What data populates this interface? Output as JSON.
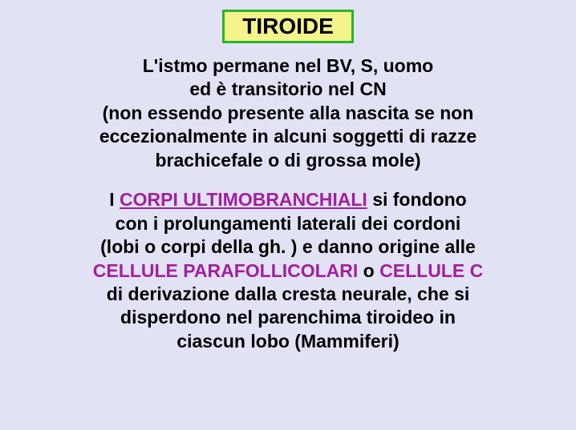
{
  "title": {
    "text": "TIROIDE",
    "border_color": "#29b329",
    "bg_color": "#f4f48c",
    "text_color": "#000000"
  },
  "para1": {
    "line1": "L'istmo permane nel BV, S, uomo",
    "line2": "ed è transitorio nel CN",
    "line3": "(non essendo presente alla nascita se non",
    "line4": "eccezionalmente in alcuni soggetti di razze",
    "line5": "brachicefale o di grossa mole)"
  },
  "para2": {
    "pre": "I ",
    "term1": "CORPI ULTIMOBRANCHIALI",
    "mid1": " si fondono",
    "line2": "con i prolungamenti laterali dei cordoni",
    "line3": "(lobi o corpi della gh. ) e danno origine alle",
    "term2a": "CELLULE PARAFOLLICOLARI",
    "or": " o ",
    "term2b": "CELLULE C",
    "line5": "di derivazione dalla cresta neurale, che si",
    "line6": "disperdono nel parenchima tiroideo in",
    "line7": "ciascun lobo (Mammiferi)"
  },
  "colors": {
    "highlight": "#a020a0"
  }
}
